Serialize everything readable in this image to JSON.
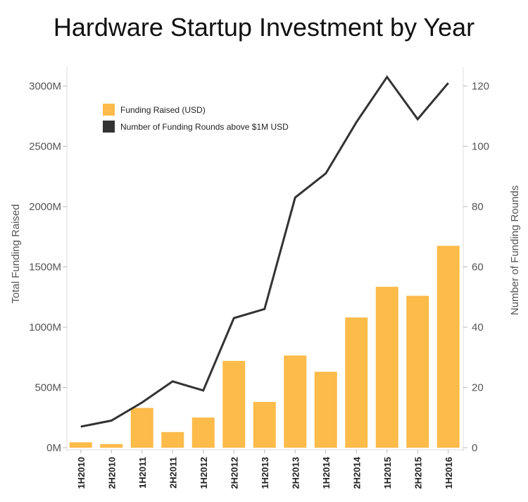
{
  "chart_data": {
    "type": "bar+line",
    "title": "Hardware Startup Investment by Year",
    "categories": [
      "1H2010",
      "2H2010",
      "1H2011",
      "2H2011",
      "1H2012",
      "2H2012",
      "1H2013",
      "2H2013",
      "1H2014",
      "2H2014",
      "1H2015",
      "2H2015",
      "1H2016"
    ],
    "series": [
      {
        "name": "Funding Raised (USD)",
        "type": "bar",
        "axis": "left",
        "color": "#FDBB4A",
        "values": [
          45,
          30,
          330,
          130,
          250,
          720,
          380,
          765,
          630,
          1080,
          1335,
          1260,
          1675
        ]
      },
      {
        "name": "Number of Funding Rounds above $1M USD",
        "type": "line",
        "axis": "right",
        "color": "#333333",
        "values": [
          7,
          9,
          15,
          22,
          19,
          43,
          46,
          83,
          91,
          108,
          123,
          109,
          121
        ]
      }
    ],
    "ylabel_left": "Total Funding Raised",
    "ylabel_right": "Number of Funding Rounds",
    "ylim_left": [
      0,
      3000
    ],
    "yticks_left": [
      "0M",
      "500M",
      "1000M",
      "1500M",
      "2000M",
      "2500M",
      "3000M"
    ],
    "ylim_right": [
      0,
      120
    ],
    "yticks_right": [
      "0",
      "20",
      "40",
      "60",
      "80",
      "100",
      "120"
    ],
    "grid": false,
    "legend_position": "top-left"
  }
}
